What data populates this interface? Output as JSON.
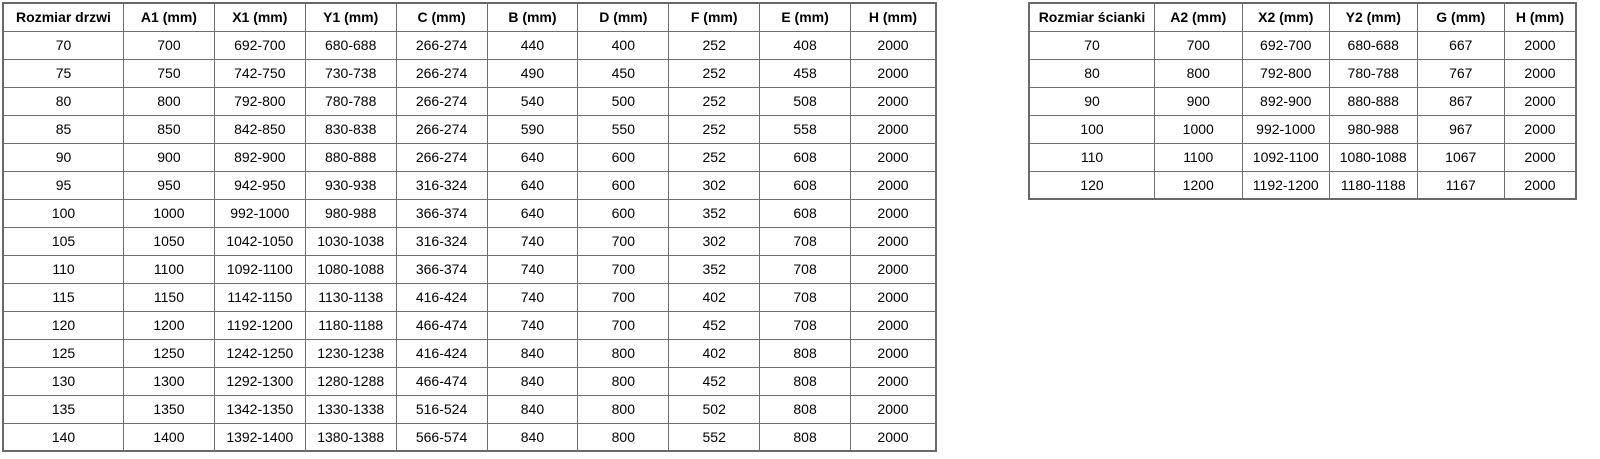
{
  "page": {
    "background": "#ffffff",
    "text_color": "#000000",
    "border_color": "#6e6e6e"
  },
  "tables": {
    "door": {
      "title_column": "Rozmiar drzwi",
      "headers": [
        "Rozmiar drzwi",
        "A1 (mm)",
        "X1 (mm)",
        "Y1 (mm)",
        "C (mm)",
        "B (mm)",
        "D (mm)",
        "F (mm)",
        "E (mm)",
        "H (mm)"
      ],
      "rows": [
        [
          "70",
          "700",
          "692-700",
          "680-688",
          "266-274",
          "440",
          "400",
          "252",
          "408",
          "2000"
        ],
        [
          "75",
          "750",
          "742-750",
          "730-738",
          "266-274",
          "490",
          "450",
          "252",
          "458",
          "2000"
        ],
        [
          "80",
          "800",
          "792-800",
          "780-788",
          "266-274",
          "540",
          "500",
          "252",
          "508",
          "2000"
        ],
        [
          "85",
          "850",
          "842-850",
          "830-838",
          "266-274",
          "590",
          "550",
          "252",
          "558",
          "2000"
        ],
        [
          "90",
          "900",
          "892-900",
          "880-888",
          "266-274",
          "640",
          "600",
          "252",
          "608",
          "2000"
        ],
        [
          "95",
          "950",
          "942-950",
          "930-938",
          "316-324",
          "640",
          "600",
          "302",
          "608",
          "2000"
        ],
        [
          "100",
          "1000",
          "992-1000",
          "980-988",
          "366-374",
          "640",
          "600",
          "352",
          "608",
          "2000"
        ],
        [
          "105",
          "1050",
          "1042-1050",
          "1030-1038",
          "316-324",
          "740",
          "700",
          "302",
          "708",
          "2000"
        ],
        [
          "110",
          "1100",
          "1092-1100",
          "1080-1088",
          "366-374",
          "740",
          "700",
          "352",
          "708",
          "2000"
        ],
        [
          "115",
          "1150",
          "1142-1150",
          "1130-1138",
          "416-424",
          "740",
          "700",
          "402",
          "708",
          "2000"
        ],
        [
          "120",
          "1200",
          "1192-1200",
          "1180-1188",
          "466-474",
          "740",
          "700",
          "452",
          "708",
          "2000"
        ],
        [
          "125",
          "1250",
          "1242-1250",
          "1230-1238",
          "416-424",
          "840",
          "800",
          "402",
          "808",
          "2000"
        ],
        [
          "130",
          "1300",
          "1292-1300",
          "1280-1288",
          "466-474",
          "840",
          "800",
          "452",
          "808",
          "2000"
        ],
        [
          "135",
          "1350",
          "1342-1350",
          "1330-1338",
          "516-524",
          "840",
          "800",
          "502",
          "808",
          "2000"
        ],
        [
          "140",
          "1400",
          "1392-1400",
          "1380-1388",
          "566-574",
          "840",
          "800",
          "552",
          "808",
          "2000"
        ]
      ]
    },
    "wall": {
      "title_column": "Rozmiar ścianki",
      "headers": [
        "Rozmiar ścianki",
        "A2 (mm)",
        "X2 (mm)",
        "Y2 (mm)",
        "G (mm)",
        "H (mm)"
      ],
      "rows": [
        [
          "70",
          "700",
          "692-700",
          "680-688",
          "667",
          "2000"
        ],
        [
          "80",
          "800",
          "792-800",
          "780-788",
          "767",
          "2000"
        ],
        [
          "90",
          "900",
          "892-900",
          "880-888",
          "867",
          "2000"
        ],
        [
          "100",
          "1000",
          "992-1000",
          "980-988",
          "967",
          "2000"
        ],
        [
          "110",
          "1100",
          "1092-1100",
          "1080-1088",
          "1067",
          "2000"
        ],
        [
          "120",
          "1200",
          "1192-1200",
          "1180-1188",
          "1167",
          "2000"
        ]
      ]
    }
  }
}
